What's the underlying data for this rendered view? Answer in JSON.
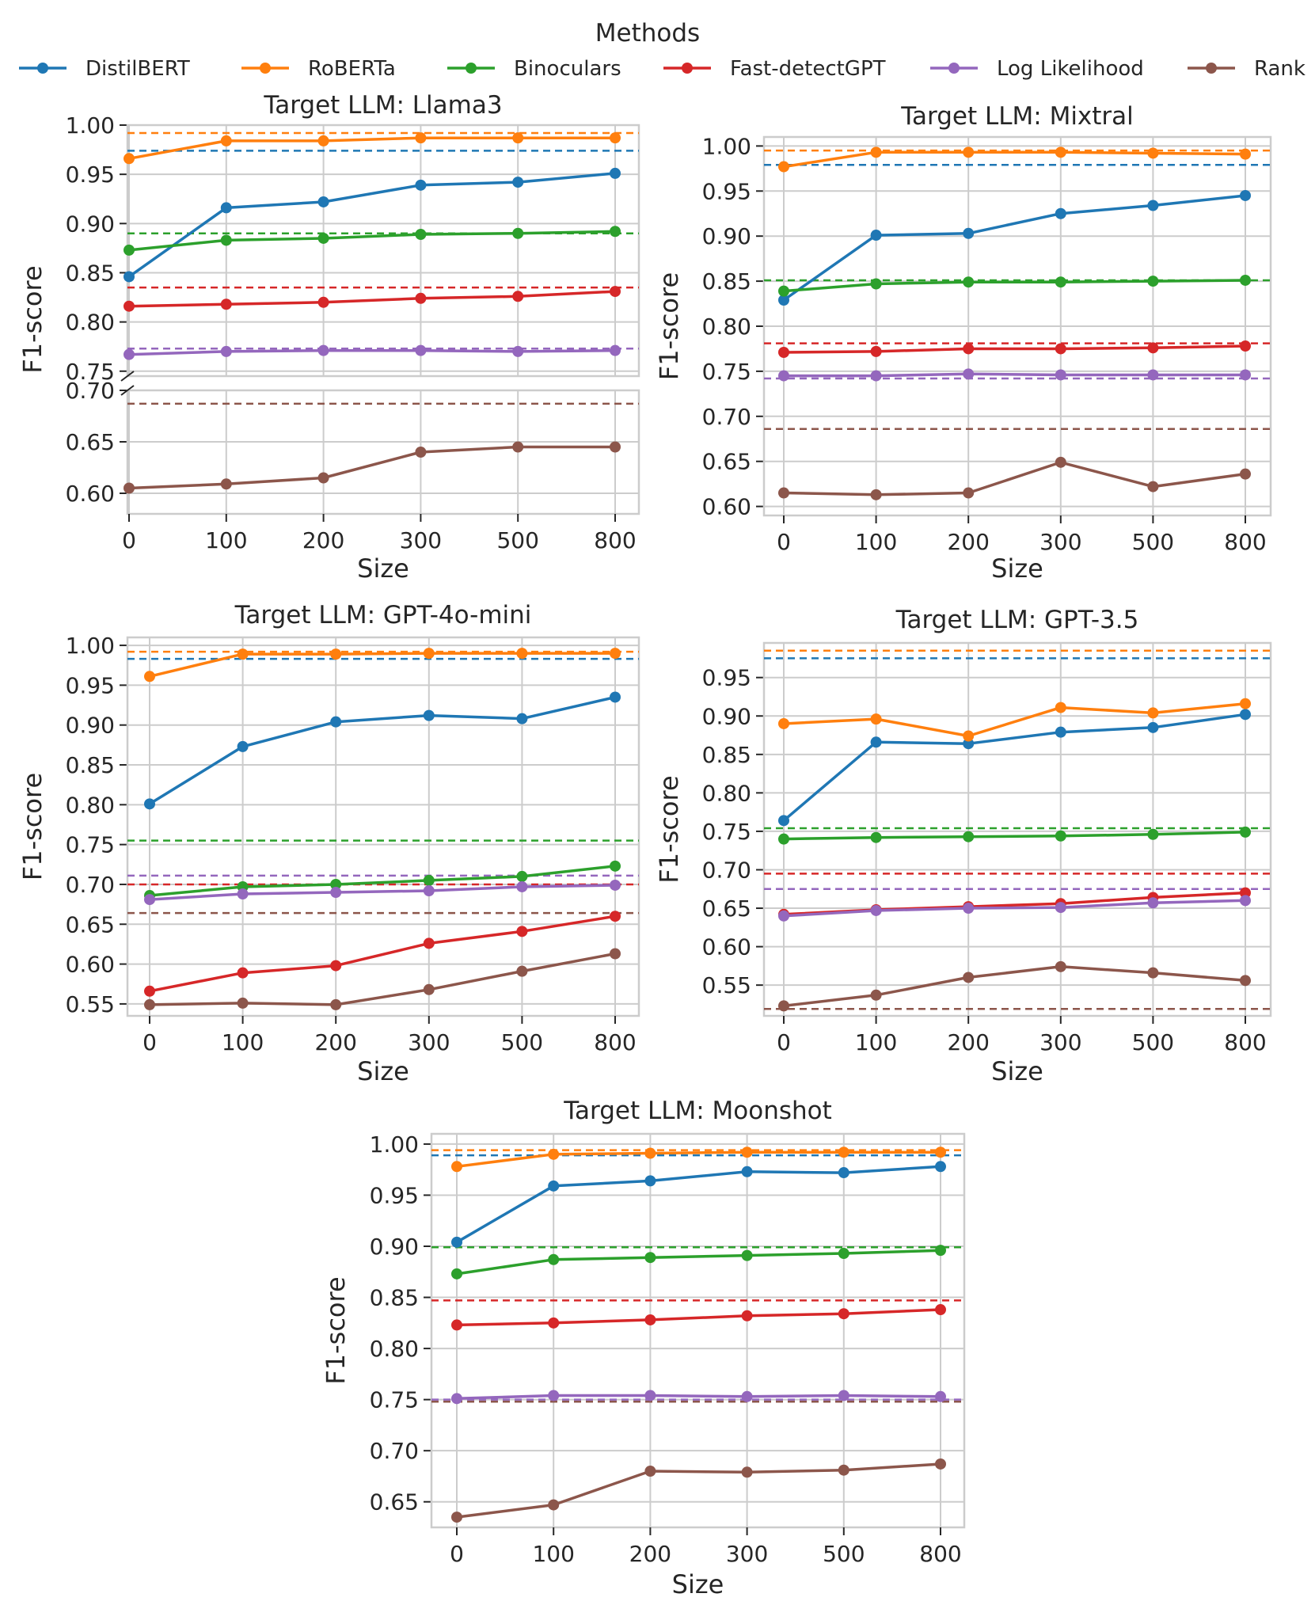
{
  "legend": {
    "title": "Methods",
    "entries": [
      {
        "name": "DistilBERT",
        "color": "#1f77b4"
      },
      {
        "name": "RoBERTa",
        "color": "#ff7f0e"
      },
      {
        "name": "Binoculars",
        "color": "#2ca02c"
      },
      {
        "name": "Fast-detectGPT",
        "color": "#d62728"
      },
      {
        "name": "Log Likelihood",
        "color": "#9467bd"
      },
      {
        "name": "Rank",
        "color": "#8c564b"
      }
    ]
  },
  "chart_data": [
    {
      "type": "line",
      "title": "Target LLM: Llama3",
      "xlabel": "Size",
      "ylabel": "F1-score",
      "categories": [
        "0",
        "100",
        "200",
        "300",
        "500",
        "800"
      ],
      "broken_axis": true,
      "ylim_upper": [
        0.745,
        1.0
      ],
      "yticks_upper": [
        "0.75",
        "0.80",
        "0.85",
        "0.90",
        "0.95",
        "1.00"
      ],
      "ylim_lower": [
        0.58,
        0.7
      ],
      "yticks_lower": [
        "0.60",
        "0.65",
        "0.70"
      ],
      "series": [
        {
          "name": "DistilBERT",
          "values": [
            0.846,
            0.916,
            0.922,
            0.939,
            0.942,
            0.951
          ],
          "baseline": 0.974
        },
        {
          "name": "RoBERTa",
          "values": [
            0.966,
            0.984,
            0.984,
            0.987,
            0.987,
            0.987
          ],
          "baseline": 0.992
        },
        {
          "name": "Binoculars",
          "values": [
            0.873,
            0.883,
            0.885,
            0.889,
            0.89,
            0.892
          ],
          "baseline": 0.89
        },
        {
          "name": "Fast-detectGPT",
          "values": [
            0.816,
            0.818,
            0.82,
            0.824,
            0.826,
            0.831
          ],
          "baseline": 0.835
        },
        {
          "name": "Log Likelihood",
          "values": [
            0.767,
            0.77,
            0.771,
            0.771,
            0.77,
            0.771
          ],
          "baseline": 0.773
        },
        {
          "name": "Rank",
          "values": [
            0.605,
            0.609,
            0.615,
            0.64,
            0.645,
            0.645
          ],
          "baseline": 0.687
        }
      ]
    },
    {
      "type": "line",
      "title": "Target LLM: Mixtral",
      "xlabel": "Size",
      "ylabel": "F1-score",
      "categories": [
        "0",
        "100",
        "200",
        "300",
        "500",
        "800"
      ],
      "ylim": [
        0.59,
        1.01
      ],
      "yticks": [
        "0.60",
        "0.65",
        "0.70",
        "0.75",
        "0.80",
        "0.85",
        "0.90",
        "0.95",
        "1.00"
      ],
      "series": [
        {
          "name": "DistilBERT",
          "values": [
            0.829,
            0.901,
            0.903,
            0.925,
            0.934,
            0.945
          ],
          "baseline": 0.979
        },
        {
          "name": "RoBERTa",
          "values": [
            0.977,
            0.993,
            0.993,
            0.993,
            0.992,
            0.991
          ],
          "baseline": 0.995
        },
        {
          "name": "Binoculars",
          "values": [
            0.839,
            0.847,
            0.849,
            0.849,
            0.85,
            0.851
          ],
          "baseline": 0.851
        },
        {
          "name": "Fast-detectGPT",
          "values": [
            0.771,
            0.772,
            0.775,
            0.775,
            0.776,
            0.778
          ],
          "baseline": 0.781
        },
        {
          "name": "Log Likelihood",
          "values": [
            0.745,
            0.745,
            0.747,
            0.746,
            0.746,
            0.746
          ],
          "baseline": 0.742
        },
        {
          "name": "Rank",
          "values": [
            0.615,
            0.613,
            0.615,
            0.649,
            0.622,
            0.636
          ],
          "baseline": 0.686
        }
      ]
    },
    {
      "type": "line",
      "title": "Target LLM: GPT-4o-mini",
      "xlabel": "Size",
      "ylabel": "F1-score",
      "categories": [
        "0",
        "100",
        "200",
        "300",
        "500",
        "800"
      ],
      "ylim": [
        0.535,
        1.01
      ],
      "yticks": [
        "0.55",
        "0.60",
        "0.65",
        "0.70",
        "0.75",
        "0.80",
        "0.85",
        "0.90",
        "0.95",
        "1.00"
      ],
      "series": [
        {
          "name": "DistilBERT",
          "values": [
            0.801,
            0.873,
            0.904,
            0.912,
            0.908,
            0.935
          ],
          "baseline": 0.983
        },
        {
          "name": "RoBERTa",
          "values": [
            0.961,
            0.989,
            0.989,
            0.99,
            0.99,
            0.99
          ],
          "baseline": 0.992
        },
        {
          "name": "Binoculars",
          "values": [
            0.686,
            0.697,
            0.7,
            0.705,
            0.71,
            0.723
          ],
          "baseline": 0.755
        },
        {
          "name": "Fast-detectGPT",
          "values": [
            0.566,
            0.589,
            0.598,
            0.626,
            0.641,
            0.66
          ],
          "baseline": 0.7
        },
        {
          "name": "Log Likelihood",
          "values": [
            0.681,
            0.688,
            0.69,
            0.692,
            0.697,
            0.699
          ],
          "baseline": 0.711
        },
        {
          "name": "Rank",
          "values": [
            0.549,
            0.551,
            0.549,
            0.568,
            0.591,
            0.613
          ],
          "baseline": 0.664
        }
      ]
    },
    {
      "type": "line",
      "title": "Target LLM: GPT-3.5",
      "xlabel": "Size",
      "ylabel": "F1-score",
      "categories": [
        "0",
        "100",
        "200",
        "300",
        "500",
        "800"
      ],
      "ylim": [
        0.51,
        0.995
      ],
      "yticks": [
        "0.55",
        "0.60",
        "0.65",
        "0.70",
        "0.75",
        "0.80",
        "0.85",
        "0.90",
        "0.95"
      ],
      "series": [
        {
          "name": "DistilBERT",
          "values": [
            0.764,
            0.866,
            0.864,
            0.879,
            0.885,
            0.902
          ],
          "baseline": 0.975
        },
        {
          "name": "RoBERTa",
          "values": [
            0.89,
            0.896,
            0.874,
            0.911,
            0.904,
            0.916
          ],
          "baseline": 0.985
        },
        {
          "name": "Binoculars",
          "values": [
            0.74,
            0.742,
            0.743,
            0.744,
            0.746,
            0.749
          ],
          "baseline": 0.754
        },
        {
          "name": "Fast-detectGPT",
          "values": [
            0.642,
            0.648,
            0.652,
            0.656,
            0.664,
            0.67
          ],
          "baseline": 0.695
        },
        {
          "name": "Log Likelihood",
          "values": [
            0.64,
            0.647,
            0.65,
            0.651,
            0.657,
            0.66
          ],
          "baseline": 0.675
        },
        {
          "name": "Rank",
          "values": [
            0.523,
            0.537,
            0.56,
            0.574,
            0.566,
            0.556
          ],
          "baseline": 0.519
        }
      ]
    },
    {
      "type": "line",
      "title": "Target LLM: Moonshot",
      "xlabel": "Size",
      "ylabel": "F1-score",
      "categories": [
        "0",
        "100",
        "200",
        "300",
        "500",
        "800"
      ],
      "ylim": [
        0.625,
        1.01
      ],
      "yticks": [
        "0.65",
        "0.70",
        "0.75",
        "0.80",
        "0.85",
        "0.90",
        "0.95",
        "1.00"
      ],
      "series": [
        {
          "name": "DistilBERT",
          "values": [
            0.904,
            0.959,
            0.964,
            0.973,
            0.972,
            0.978
          ],
          "baseline": 0.989
        },
        {
          "name": "RoBERTa",
          "values": [
            0.978,
            0.99,
            0.991,
            0.992,
            0.992,
            0.992
          ],
          "baseline": 0.994
        },
        {
          "name": "Binoculars",
          "values": [
            0.873,
            0.887,
            0.889,
            0.891,
            0.893,
            0.896
          ],
          "baseline": 0.899
        },
        {
          "name": "Fast-detectGPT",
          "values": [
            0.823,
            0.825,
            0.828,
            0.832,
            0.834,
            0.838
          ],
          "baseline": 0.847
        },
        {
          "name": "Log Likelihood",
          "values": [
            0.751,
            0.754,
            0.754,
            0.753,
            0.754,
            0.753
          ],
          "baseline": 0.75
        },
        {
          "name": "Rank",
          "values": [
            0.635,
            0.647,
            0.68,
            0.679,
            0.681,
            0.687
          ],
          "baseline": 0.748
        }
      ]
    }
  ]
}
